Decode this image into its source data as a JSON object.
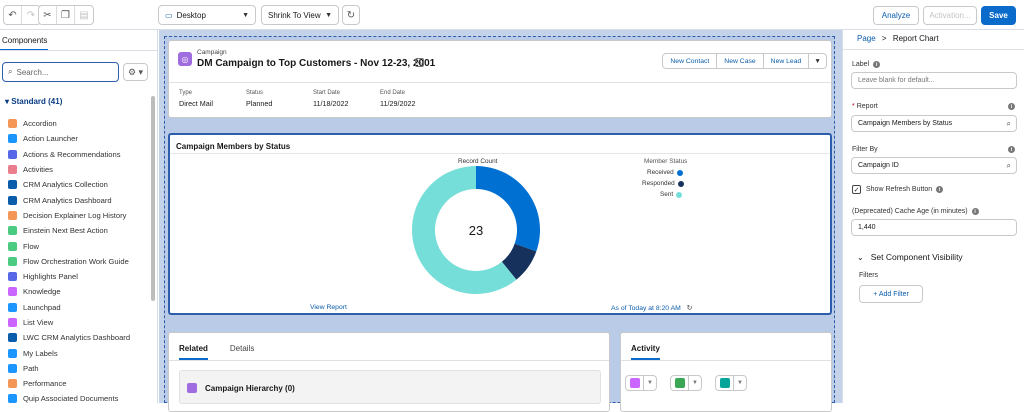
{
  "toolbar": {
    "undo_icon": "undo-icon",
    "redo_icon": "redo-icon",
    "cut_icon": "cut-icon",
    "copy_icon": "copy-icon",
    "paste_icon": "paste-icon",
    "device_select": "Desktop",
    "view_select": "Shrink To View",
    "analyze_label": "Analyze",
    "activation_label": "Activation...",
    "save_label": "Save"
  },
  "left_panel": {
    "tab_label": "Components",
    "search_placeholder": "Search...",
    "section_label": "Standard (41)",
    "items": [
      {
        "label": "Accordion",
        "color": "#f49756"
      },
      {
        "label": "Action Launcher",
        "color": "#1b96ff"
      },
      {
        "label": "Actions & Recommendations",
        "color": "#5867e8"
      },
      {
        "label": "Activities",
        "color": "#ea7e8d"
      },
      {
        "label": "CRM Analytics Collection",
        "color": "#0b5cab"
      },
      {
        "label": "CRM Analytics Dashboard",
        "color": "#0b5cab"
      },
      {
        "label": "Decision Explainer Log History",
        "color": "#f49756"
      },
      {
        "label": "Einstein Next Best Action",
        "color": "#4bca81"
      },
      {
        "label": "Flow",
        "color": "#4bca81"
      },
      {
        "label": "Flow Orchestration Work Guide",
        "color": "#4bca81"
      },
      {
        "label": "Highlights Panel",
        "color": "#5867e8"
      },
      {
        "label": "Knowledge",
        "color": "#cb65ff"
      },
      {
        "label": "Launchpad",
        "color": "#1b96ff"
      },
      {
        "label": "List View",
        "color": "#cb65ff"
      },
      {
        "label": "LWC CRM Analytics Dashboard",
        "color": "#0b5cab"
      },
      {
        "label": "My Labels",
        "color": "#1b96ff"
      },
      {
        "label": "Path",
        "color": "#1b96ff"
      },
      {
        "label": "Performance",
        "color": "#f49756"
      },
      {
        "label": "Quip Associated Documents",
        "color": "#1b96ff"
      }
    ]
  },
  "highlights": {
    "object_type": "Campaign",
    "title": "DM Campaign to Top Customers - Nov 12-23, 2001",
    "tag": "A",
    "actions": [
      "New Contact",
      "New Case",
      "New Lead"
    ],
    "fields": [
      {
        "label": "Type",
        "value": "Direct Mail"
      },
      {
        "label": "Status",
        "value": "Planned"
      },
      {
        "label": "Start Date",
        "value": "11/18/2022"
      },
      {
        "label": "End Date",
        "value": "11/29/2022"
      }
    ]
  },
  "report_chart": {
    "title": "Campaign Members by Status",
    "view_report": "View Report",
    "as_of": "As of Today at 8:20 AM"
  },
  "chart_data": {
    "type": "pie",
    "title": "Record Count",
    "center_label": "23",
    "legend_title": "Member Status",
    "legend_position": "right",
    "series": [
      {
        "name": "Received",
        "value": 7,
        "color": "#0070d2"
      },
      {
        "name": "Responded",
        "value": 2,
        "color": "#16325c"
      },
      {
        "name": "Sent",
        "value": 14,
        "color": "#76ded9"
      }
    ]
  },
  "related": {
    "tabs": [
      "Related",
      "Details"
    ],
    "hierarchy_title": "Campaign Hierarchy (0)"
  },
  "activity": {
    "tab_label": "Activity"
  },
  "right_panel": {
    "breadcrumb_page": "Page",
    "breadcrumb_sep": ">",
    "breadcrumb_current": "Report Chart",
    "label_label": "Label",
    "label_placeholder": "Leave blank for default...",
    "report_label": "Report",
    "report_value": "Campaign Members by Status",
    "filter_label": "Filter By",
    "filter_value": "Campaign ID",
    "refresh_label": "Show Refresh Button",
    "cache_label": "(Deprecated) Cache Age (in minutes)",
    "cache_value": "1,440",
    "visibility_label": "Set Component Visibility",
    "filters_label": "Filters",
    "add_filter_label": "+ Add Filter"
  }
}
